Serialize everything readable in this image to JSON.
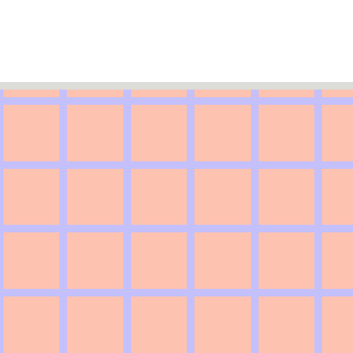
{
  "colors": {
    "page_background": "#ffffff",
    "top_border": "#dcdcd8",
    "tile_fill": "#fdc2b0",
    "grid_line": "#c4c0fb"
  },
  "grid": {
    "visible_columns": 6,
    "visible_rows": 4,
    "partial_right_column": true,
    "partial_bottom_row": true
  }
}
